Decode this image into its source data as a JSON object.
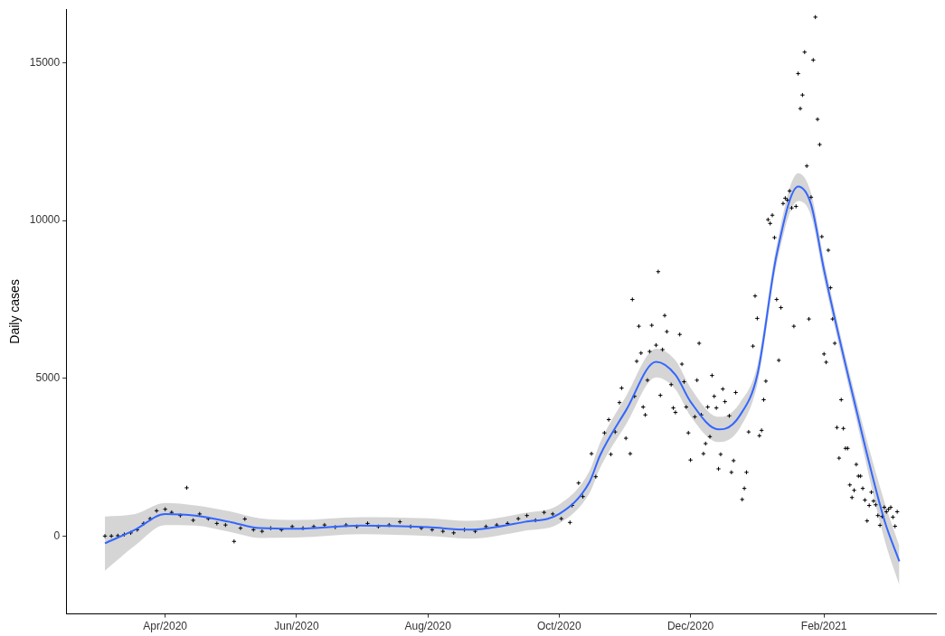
{
  "chart_data": {
    "type": "scatter",
    "ylabel": "Daily cases",
    "legend": false,
    "grid": false,
    "xlim": [
      "2020-02-15",
      "2021-03-25"
    ],
    "xticks": [
      {
        "value": "2020-04-01",
        "label": "Apr/2020"
      },
      {
        "value": "2020-06-01",
        "label": "Jun/2020"
      },
      {
        "value": "2020-08-01",
        "label": "Aug/2020"
      },
      {
        "value": "2020-10-01",
        "label": "Oct/2020"
      },
      {
        "value": "2020-12-01",
        "label": "Dec/2020"
      },
      {
        "value": "2021-02-01",
        "label": "Feb/2021"
      }
    ],
    "ylim": [
      -2470,
      16700
    ],
    "yticks": [
      0,
      5000,
      10000,
      15000
    ],
    "series": [
      {
        "marker": "cross",
        "color": "#000000",
        "x": [
          "2020-03-04",
          "2020-03-07",
          "2020-03-10",
          "2020-03-13",
          "2020-03-16",
          "2020-03-19",
          "2020-03-22",
          "2020-03-25",
          "2020-03-28",
          "2020-04-01",
          "2020-04-04",
          "2020-04-08",
          "2020-04-11",
          "2020-04-14",
          "2020-04-17",
          "2020-04-21",
          "2020-04-25",
          "2020-04-29",
          "2020-05-03",
          "2020-05-06",
          "2020-05-08",
          "2020-05-12",
          "2020-05-16",
          "2020-05-20",
          "2020-05-25",
          "2020-05-30",
          "2020-06-04",
          "2020-06-09",
          "2020-06-14",
          "2020-06-19",
          "2020-06-24",
          "2020-06-29",
          "2020-07-04",
          "2020-07-09",
          "2020-07-14",
          "2020-07-19",
          "2020-07-24",
          "2020-07-29",
          "2020-08-03",
          "2020-08-08",
          "2020-08-13",
          "2020-08-18",
          "2020-08-23",
          "2020-08-28",
          "2020-09-02",
          "2020-09-07",
          "2020-09-12",
          "2020-09-16",
          "2020-09-20",
          "2020-09-24",
          "2020-09-28",
          "2020-10-02",
          "2020-10-06",
          "2020-10-07",
          "2020-10-10",
          "2020-10-12",
          "2020-10-16",
          "2020-10-18",
          "2020-10-22",
          "2020-10-24",
          "2020-10-25",
          "2020-10-27",
          "2020-10-29",
          "2020-10-30",
          "2020-11-01",
          "2020-11-03",
          "2020-11-04",
          "2020-11-05",
          "2020-11-06",
          "2020-11-07",
          "2020-11-08",
          "2020-11-09",
          "2020-11-10",
          "2020-11-11",
          "2020-11-12",
          "2020-11-13",
          "2020-11-15",
          "2020-11-16",
          "2020-11-17",
          "2020-11-18",
          "2020-11-19",
          "2020-11-20",
          "2020-11-22",
          "2020-11-23",
          "2020-11-24",
          "2020-11-26",
          "2020-11-27",
          "2020-11-28",
          "2020-11-29",
          "2020-11-30",
          "2020-12-01",
          "2020-12-03",
          "2020-12-04",
          "2020-12-05",
          "2020-12-06",
          "2020-12-07",
          "2020-12-08",
          "2020-12-09",
          "2020-12-10",
          "2020-12-11",
          "2020-12-12",
          "2020-12-13",
          "2020-12-14",
          "2020-12-15",
          "2020-12-16",
          "2020-12-17",
          "2020-12-19",
          "2020-12-20",
          "2020-12-21",
          "2020-12-22",
          "2020-12-25",
          "2020-12-26",
          "2020-12-27",
          "2020-12-28",
          "2020-12-30",
          "2020-12-31",
          "2021-01-01",
          "2021-01-02",
          "2021-01-03",
          "2021-01-04",
          "2021-01-05",
          "2021-01-06",
          "2021-01-07",
          "2021-01-08",
          "2021-01-09",
          "2021-01-10",
          "2021-01-11",
          "2021-01-12",
          "2021-01-13",
          "2021-01-14",
          "2021-01-15",
          "2021-01-16",
          "2021-01-17",
          "2021-01-18",
          "2021-01-19",
          "2021-01-20",
          "2021-01-21",
          "2021-01-22",
          "2021-01-23",
          "2021-01-24",
          "2021-01-25",
          "2021-01-26",
          "2021-01-27",
          "2021-01-28",
          "2021-01-29",
          "2021-01-30",
          "2021-01-31",
          "2021-02-01",
          "2021-02-02",
          "2021-02-03",
          "2021-02-04",
          "2021-02-05",
          "2021-02-06",
          "2021-02-07",
          "2021-02-08",
          "2021-02-09",
          "2021-02-10",
          "2021-02-11",
          "2021-02-12",
          "2021-02-13",
          "2021-02-14",
          "2021-02-15",
          "2021-02-16",
          "2021-02-17",
          "2021-02-18",
          "2021-02-19",
          "2021-02-20",
          "2021-02-21",
          "2021-02-22",
          "2021-02-23",
          "2021-02-24",
          "2021-02-25",
          "2021-02-26",
          "2021-02-27",
          "2021-02-28",
          "2021-03-01",
          "2021-03-02",
          "2021-03-03",
          "2021-03-04",
          "2021-03-05",
          "2021-03-06",
          "2021-03-07"
        ],
        "values": [
          0,
          0,
          10,
          50,
          100,
          200,
          400,
          550,
          800,
          850,
          750,
          650,
          1530,
          500,
          700,
          550,
          400,
          350,
          -170,
          250,
          540,
          200,
          150,
          250,
          200,
          300,
          250,
          300,
          350,
          280,
          350,
          300,
          400,
          300,
          350,
          450,
          300,
          250,
          200,
          150,
          100,
          200,
          150,
          300,
          350,
          400,
          550,
          650,
          500,
          750,
          700,
          550,
          430,
          970,
          1680,
          1250,
          2610,
          1880,
          3270,
          3690,
          2590,
          3300,
          4230,
          4690,
          3100,
          2610,
          7500,
          4430,
          5540,
          6650,
          5800,
          4090,
          3840,
          4940,
          5850,
          6680,
          6050,
          8380,
          4460,
          5910,
          6990,
          6480,
          4800,
          4060,
          3920,
          6390,
          5450,
          4890,
          4090,
          3270,
          2410,
          3780,
          4940,
          6110,
          3840,
          2610,
          2930,
          4090,
          3150,
          5090,
          4430,
          4060,
          2130,
          2590,
          4660,
          4260,
          3810,
          2020,
          2390,
          4550,
          1160,
          1510,
          2020,
          3300,
          6020,
          7610,
          6900,
          3180,
          3350,
          4320,
          4910,
          10030,
          9910,
          10170,
          9460,
          7500,
          5570,
          7240,
          10540,
          10710,
          10650,
          10940,
          10400,
          6650,
          10450,
          14660,
          13550,
          13980,
          15340,
          11730,
          6880,
          10740,
          15090,
          16450,
          13210,
          12410,
          9490,
          5770,
          5510,
          9060,
          7870,
          6880,
          6110,
          3440,
          2470,
          4320,
          3410,
          2780,
          2780,
          1620,
          1220,
          1450,
          2270,
          1900,
          1900,
          1510,
          1140,
          480,
          970,
          1390,
          1110,
          990,
          650,
          340,
          620,
          910,
          770,
          850,
          910,
          600,
          310,
          770
        ]
      },
      {
        "type": "line",
        "color": "#3366ff",
        "x": [
          "2020-03-04",
          "2020-03-18",
          "2020-04-01",
          "2020-04-15",
          "2020-05-01",
          "2020-05-15",
          "2020-06-01",
          "2020-07-01",
          "2020-08-01",
          "2020-08-20",
          "2020-09-15",
          "2020-10-01",
          "2020-10-15",
          "2020-10-20",
          "2020-11-01",
          "2020-11-15",
          "2020-11-24",
          "2020-12-01",
          "2020-12-14",
          "2020-12-17",
          "2020-12-24",
          "2021-01-01",
          "2021-01-10",
          "2021-01-20",
          "2021-01-26",
          "2021-02-01",
          "2021-02-15",
          "2021-03-01",
          "2021-03-08"
        ],
        "values": [
          -230,
          200,
          700,
          650,
          450,
          250,
          230,
          330,
          280,
          200,
          450,
          700,
          1700,
          2560,
          3980,
          5520,
          5110,
          4260,
          3380,
          3400,
          3830,
          5100,
          8920,
          11080,
          10510,
          8440,
          4290,
          510,
          -800
        ],
        "lower": [
          -1100,
          -300,
          350,
          330,
          130,
          -60,
          -50,
          60,
          0,
          -80,
          170,
          400,
          1350,
          2160,
          3530,
          5030,
          4650,
          3800,
          2980,
          3000,
          3430,
          4800,
          8620,
          10620,
          10150,
          8140,
          3990,
          -90,
          -1560
        ],
        "upper": [
          620,
          700,
          1050,
          970,
          780,
          560,
          510,
          600,
          560,
          480,
          730,
          1000,
          2050,
          2960,
          4430,
          5940,
          5570,
          4700,
          3780,
          3800,
          4230,
          5400,
          9220,
          11500,
          10870,
          8740,
          4590,
          1100,
          -310
        ]
      }
    ]
  }
}
